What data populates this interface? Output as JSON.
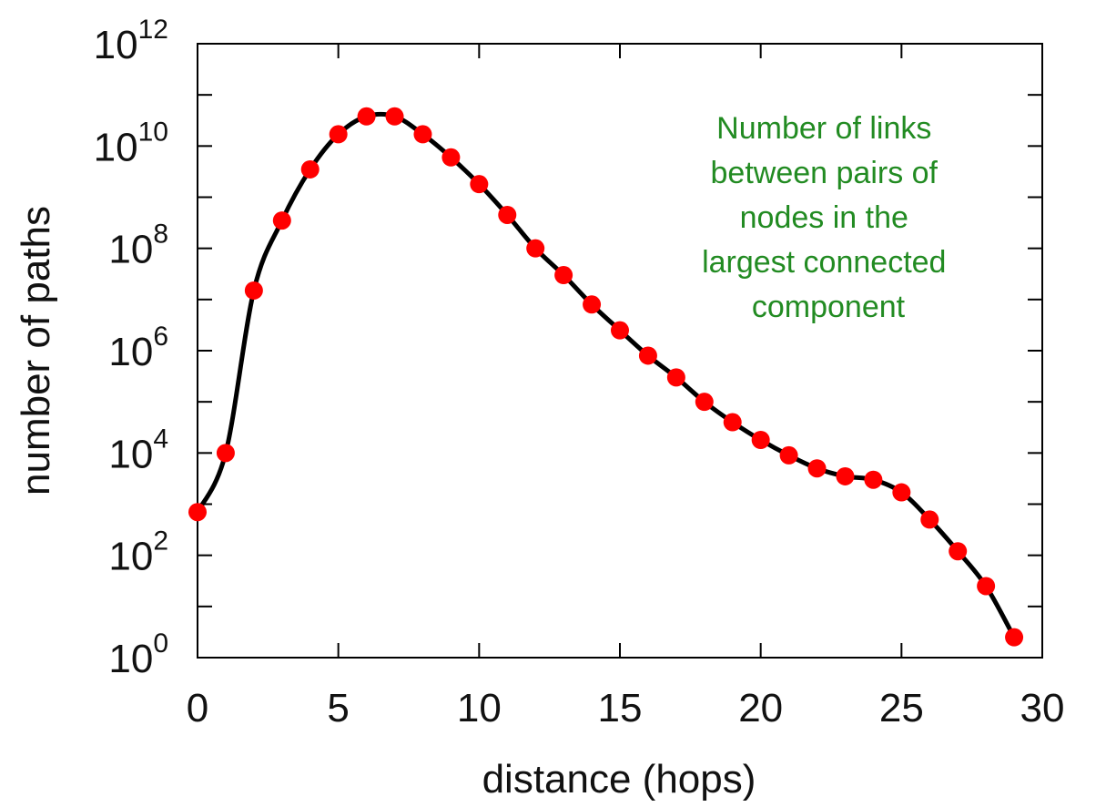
{
  "chart_data": {
    "type": "line",
    "title": "",
    "xlabel": "distance (hops)",
    "ylabel": "number of paths",
    "xlim": [
      0,
      30
    ],
    "ylim": [
      1,
      1000000000000
    ],
    "yscale": "log",
    "grid": false,
    "x_ticks": [
      {
        "value": 0,
        "label": "0"
      },
      {
        "value": 5,
        "label": "5"
      },
      {
        "value": 10,
        "label": "10"
      },
      {
        "value": 15,
        "label": "15"
      },
      {
        "value": 20,
        "label": "20"
      },
      {
        "value": 25,
        "label": "25"
      },
      {
        "value": 30,
        "label": "30"
      }
    ],
    "y_ticks": [
      {
        "value": 1,
        "base": "10",
        "exp": "0"
      },
      {
        "value": 100,
        "base": "10",
        "exp": "2"
      },
      {
        "value": 10000,
        "base": "10",
        "exp": "4"
      },
      {
        "value": 1000000,
        "base": "10",
        "exp": "6"
      },
      {
        "value": 100000000,
        "base": "10",
        "exp": "8"
      },
      {
        "value": 10000000000,
        "base": "10",
        "exp": "10"
      },
      {
        "value": 1000000000000,
        "base": "10",
        "exp": "12"
      }
    ],
    "series": [
      {
        "line_color": "#000000",
        "marker_color": "#ff0000",
        "x": [
          0,
          1,
          2,
          3,
          4,
          5,
          6,
          7,
          8,
          9,
          10,
          11,
          12,
          13,
          14,
          15,
          16,
          17,
          18,
          19,
          20,
          21,
          22,
          23,
          24,
          25,
          26,
          27,
          28,
          29
        ],
        "y": [
          700,
          10000,
          15000000,
          350000000,
          3500000000,
          17000000000,
          38000000000,
          38000000000,
          17000000000,
          6000000000,
          1800000000,
          450000000,
          100000000,
          30000000,
          8000000,
          2500000,
          800000,
          300000,
          100000,
          40000,
          18000,
          9000,
          5000,
          3500,
          3000,
          1700,
          500,
          120,
          25,
          2.5
        ]
      }
    ],
    "annotation": {
      "lines": [
        "Number of links",
        "between pairs of",
        "nodes in the",
        "largest connected",
        "component"
      ],
      "color": "#228b22"
    }
  }
}
